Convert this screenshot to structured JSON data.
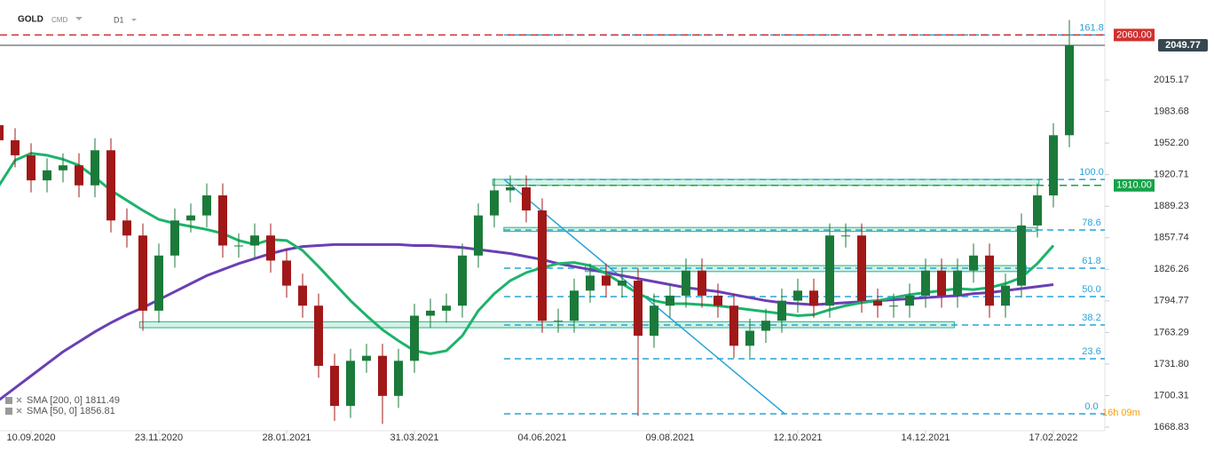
{
  "chart_data": {
    "type": "candlestick",
    "symbol": "GOLD",
    "market": "CMD",
    "interval": "D1",
    "categories": [
      null,
      null,
      "10.09.2020",
      null,
      null,
      null,
      null,
      null,
      null,
      null,
      "23.11.2020",
      null,
      null,
      null,
      null,
      null,
      null,
      null,
      "28.01.2021",
      null,
      null,
      null,
      null,
      null,
      null,
      null,
      "31.03.2021",
      null,
      null,
      null,
      null,
      null,
      null,
      null,
      "04.06.2021",
      null,
      null,
      null,
      null,
      null,
      null,
      null,
      "09.08.2021",
      null,
      null,
      null,
      null,
      null,
      null,
      null,
      "12.10.2021",
      null,
      null,
      null,
      null,
      null,
      null,
      null,
      "14.12.2021",
      null,
      null,
      null,
      null,
      null,
      null,
      null,
      "17.02.2022",
      null
    ],
    "open": [
      1970,
      1955,
      1940,
      1915,
      1925,
      1930,
      1910,
      1945,
      1875,
      1860,
      1785,
      1840,
      1875,
      1880,
      1900,
      1850,
      1850,
      1860,
      1835,
      1810,
      1790,
      1730,
      1690,
      1735,
      1740,
      1700,
      1735,
      1780,
      1785,
      1790,
      1840,
      1880,
      1905,
      1908,
      1885,
      1775,
      1775,
      1805,
      1820,
      1810,
      1815,
      1760,
      1790,
      1800,
      1825,
      1800,
      1790,
      1750,
      1765,
      1775,
      1795,
      1805,
      1790,
      1860,
      1860,
      1795,
      1790,
      1790,
      1800,
      1825,
      1800,
      1825,
      1840,
      1790,
      1810,
      1870,
      1900,
      1960
    ],
    "high": [
      1982,
      1967,
      1952,
      1937,
      1942,
      1942,
      1957,
      1957,
      1887,
      1872,
      1852,
      1887,
      1892,
      1912,
      1912,
      1862,
      1872,
      1872,
      1847,
      1822,
      1802,
      1742,
      1747,
      1752,
      1752,
      1747,
      1792,
      1797,
      1802,
      1852,
      1892,
      1917,
      1920,
      1920,
      1897,
      1787,
      1817,
      1832,
      1832,
      1827,
      1827,
      1802,
      1812,
      1837,
      1837,
      1812,
      1802,
      1777,
      1787,
      1807,
      1817,
      1817,
      1872,
      1872,
      1872,
      1807,
      1802,
      1812,
      1837,
      1837,
      1837,
      1852,
      1852,
      1822,
      1882,
      1912,
      1972,
      2075
    ],
    "low": [
      1943,
      1928,
      1903,
      1903,
      1913,
      1898,
      1898,
      1863,
      1848,
      1765,
      1773,
      1828,
      1863,
      1868,
      1838,
      1838,
      1838,
      1823,
      1798,
      1778,
      1718,
      1675,
      1678,
      1723,
      1672,
      1688,
      1723,
      1768,
      1773,
      1778,
      1828,
      1868,
      1893,
      1873,
      1763,
      1763,
      1763,
      1793,
      1798,
      1798,
      1680,
      1748,
      1778,
      1788,
      1788,
      1778,
      1738,
      1738,
      1753,
      1763,
      1783,
      1778,
      1778,
      1848,
      1783,
      1778,
      1778,
      1778,
      1788,
      1788,
      1788,
      1813,
      1778,
      1778,
      1798,
      1858,
      1888,
      1948
    ],
    "close": [
      1955,
      1940,
      1915,
      1925,
      1930,
      1910,
      1945,
      1875,
      1860,
      1785,
      1840,
      1875,
      1880,
      1900,
      1850,
      1850,
      1860,
      1835,
      1810,
      1790,
      1730,
      1690,
      1735,
      1740,
      1700,
      1735,
      1780,
      1785,
      1790,
      1840,
      1880,
      1905,
      1908,
      1885,
      1775,
      1775,
      1805,
      1820,
      1810,
      1815,
      1760,
      1790,
      1800,
      1825,
      1800,
      1790,
      1750,
      1765,
      1775,
      1795,
      1805,
      1790,
      1860,
      1860,
      1795,
      1790,
      1790,
      1800,
      1825,
      1800,
      1825,
      1840,
      1790,
      1810,
      1870,
      1900,
      1960,
      2050
    ],
    "up_color": "#1b7a3a",
    "down_color": "#a11818",
    "series": [
      {
        "name": "SMA [200, 0] 1811.49",
        "color": "#6a3fb5",
        "values": [
          1696,
          1708,
          1720,
          1732,
          1744,
          1754,
          1764,
          1773,
          1781,
          1788,
          1796,
          1804,
          1812,
          1820,
          1826,
          1832,
          1837,
          1842,
          1846,
          1849,
          1850,
          1851,
          1851,
          1851,
          1851,
          1851,
          1850,
          1850,
          1849,
          1848,
          1846,
          1844,
          1842,
          1839,
          1836,
          1832,
          1829,
          1826,
          1823,
          1820,
          1817,
          1814,
          1811,
          1808,
          1806,
          1804,
          1801,
          1798,
          1795,
          1793,
          1792,
          1791,
          1792,
          1793,
          1794,
          1795,
          1796,
          1797,
          1798,
          1799,
          1800,
          1802,
          1803,
          1805,
          1807,
          1809,
          1811,
          null
        ]
      },
      {
        "name": "SMA [50, 0] 1856.81",
        "color": "#1db36b",
        "values": [
          1910,
          1935,
          1942,
          1940,
          1936,
          1930,
          1918,
          1905,
          1895,
          1885,
          1876,
          1872,
          1869,
          1866,
          1862,
          1855,
          1851,
          1856,
          1855,
          1845,
          1829,
          1812,
          1795,
          1780,
          1766,
          1755,
          1745,
          1742,
          1745,
          1760,
          1785,
          1802,
          1815,
          1823,
          1828,
          1832,
          1833,
          1830,
          1822,
          1812,
          1802,
          1795,
          1792,
          1792,
          1791,
          1790,
          1788,
          1786,
          1784,
          1782,
          1780,
          1781,
          1786,
          1790,
          1793,
          1795,
          1798,
          1801,
          1803,
          1805,
          1807,
          1806,
          1808,
          1812,
          1818,
          1832,
          1850,
          null
        ]
      }
    ],
    "ylim": [
      1665.3,
      2094.9
    ],
    "yticks": [
      1668.83,
      1700.31,
      {
        "value": 1731.8,
        "label": "1731.80"
      },
      1763.29,
      1794.77,
      1826.26,
      1857.74,
      1889.23,
      1920.71,
      {
        "value": 1952.2,
        "label": "1952.20"
      },
      1983.68,
      2015.17
    ],
    "levels": [
      {
        "value": 2060,
        "label": "2060.00",
        "color": "#d32f2f"
      },
      {
        "value": 2049.77,
        "label": "2049.77",
        "color": "#37474f"
      },
      {
        "value": 1910,
        "label": "1910.00",
        "color": "#16a34a"
      }
    ],
    "fib_levels": [
      {
        "value": 2060,
        "label": "161.8"
      },
      {
        "value": 1915.9,
        "label": "100.0"
      },
      {
        "value": 1865.5,
        "label": "78.6"
      },
      {
        "value": 1827.4,
        "label": "61.8"
      },
      {
        "value": 1799,
        "label": "50.0"
      },
      {
        "value": 1770.7,
        "label": "38.2"
      },
      {
        "value": 1737,
        "label": "23.6"
      },
      {
        "value": 1682.1,
        "label": "0.0"
      }
    ],
    "zones": [
      {
        "start": 30.9,
        "end": 65.1,
        "low": 1910,
        "high": 1916
      },
      {
        "start": 31.6,
        "end": 64.9,
        "low": 1864,
        "high": 1868
      },
      {
        "start": 36.7,
        "end": 64.3,
        "low": 1824,
        "high": 1830
      },
      {
        "start": 8.8,
        "end": 59.8,
        "low": 1768,
        "high": 1774
      }
    ],
    "trendline": {
      "x": [
        31.6,
        49.2
      ],
      "y": [
        1916,
        1682
      ]
    },
    "countdown": "16h 09m"
  }
}
